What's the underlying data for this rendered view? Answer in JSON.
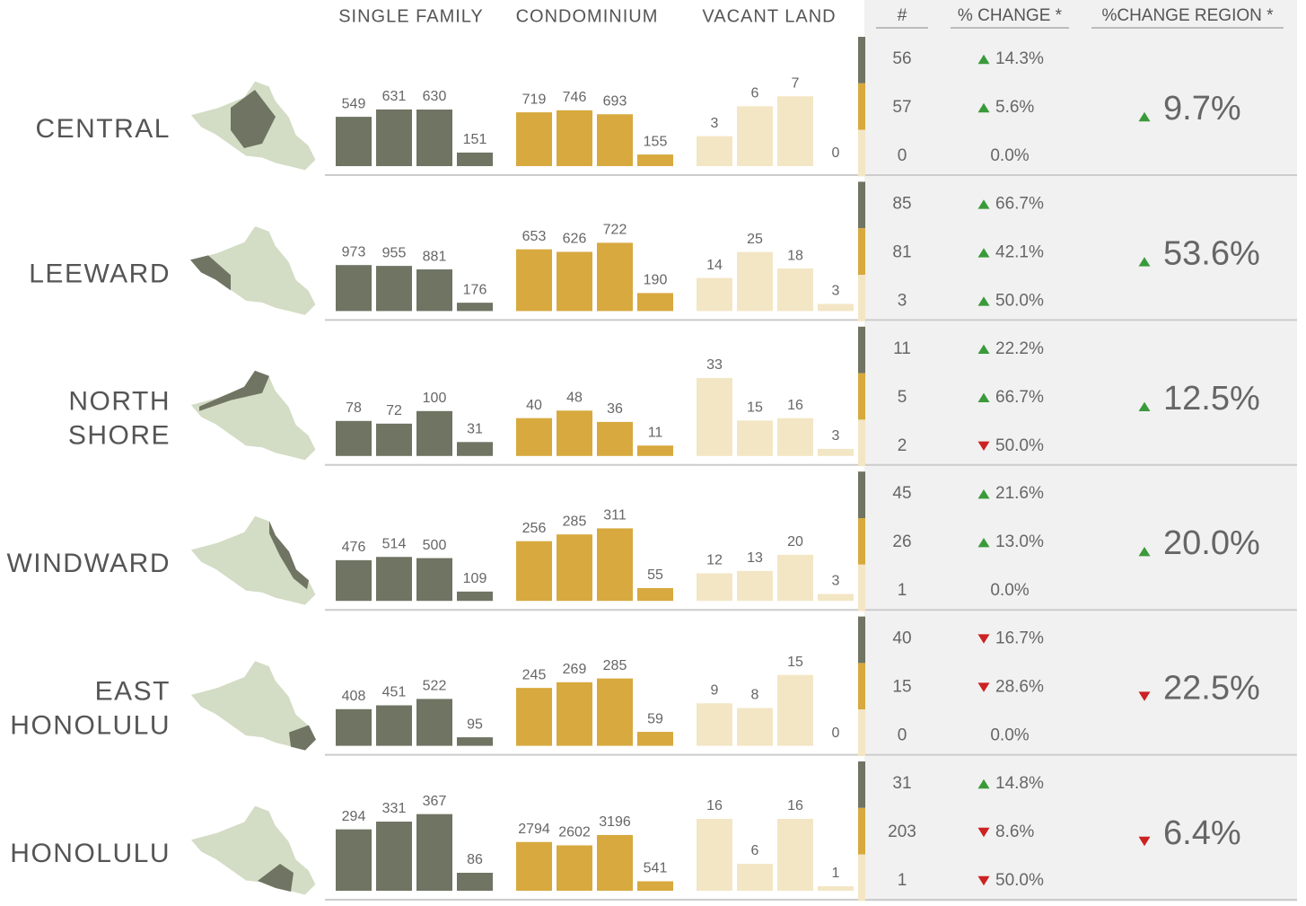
{
  "groups": [
    {
      "name": "SINGLE FAMILY",
      "color": "#6f7463"
    },
    {
      "name": "CONDOMINIUM",
      "color": "#d7a93e"
    },
    {
      "name": "VACANT LAND",
      "color": "#f3e6c4"
    }
  ],
  "stats_headers": [
    "#",
    "% CHANGE *",
    "%CHANGE REGION *"
  ],
  "up_color": "#3a9a3a",
  "down_color": "#cc2222",
  "regions": [
    {
      "name": [
        "CENTRAL"
      ],
      "charts": [
        {
          "values": [
            549,
            631,
            630,
            151
          ],
          "ylim": [
            0,
            1000
          ]
        },
        {
          "values": [
            719,
            746,
            693,
            155
          ],
          "ylim": [
            0,
            1200
          ]
        },
        {
          "values": [
            3,
            6,
            7,
            0
          ],
          "ylim": [
            0,
            9
          ]
        }
      ],
      "counts": [
        56,
        57,
        0
      ],
      "changes": [
        {
          "value": 14.3,
          "label": "14.3%"
        },
        {
          "value": 5.6,
          "label": "5.6%"
        },
        {
          "value": 0,
          "label": "0.0%"
        }
      ],
      "region_change": {
        "value": 9.7,
        "label": "9.7%"
      }
    },
    {
      "name": [
        "LEEWARD"
      ],
      "charts": [
        {
          "values": [
            973,
            955,
            881,
            176
          ],
          "ylim": [
            0,
            1900
          ]
        },
        {
          "values": [
            653,
            626,
            722,
            190
          ],
          "ylim": [
            0,
            950
          ]
        },
        {
          "values": [
            14,
            25,
            18,
            3
          ],
          "ylim": [
            0,
            38
          ]
        }
      ],
      "counts": [
        85,
        81,
        3
      ],
      "changes": [
        {
          "value": 66.7,
          "label": "66.7%"
        },
        {
          "value": 42.1,
          "label": "42.1%"
        },
        {
          "value": 50.0,
          "label": "50.0%"
        }
      ],
      "region_change": {
        "value": 53.6,
        "label": "53.6%"
      }
    },
    {
      "name": [
        "NORTH",
        "SHORE"
      ],
      "charts": [
        {
          "values": [
            78,
            72,
            100,
            31
          ],
          "ylim": [
            0,
            200
          ]
        },
        {
          "values": [
            40,
            48,
            36,
            11
          ],
          "ylim": [
            0,
            95
          ]
        },
        {
          "values": [
            33,
            15,
            16,
            3
          ],
          "ylim": [
            0,
            38
          ]
        }
      ],
      "counts": [
        11,
        5,
        2
      ],
      "changes": [
        {
          "value": 22.2,
          "label": "22.2%"
        },
        {
          "value": 66.7,
          "label": "66.7%"
        },
        {
          "value": -50.0,
          "label": "50.0%"
        }
      ],
      "region_change": {
        "value": 12.5,
        "label": "12.5%"
      }
    },
    {
      "name": [
        "WINDWARD"
      ],
      "charts": [
        {
          "values": [
            476,
            514,
            500,
            109
          ],
          "ylim": [
            0,
            1050
          ]
        },
        {
          "values": [
            256,
            285,
            311,
            55
          ],
          "ylim": [
            0,
            385
          ]
        },
        {
          "values": [
            12,
            13,
            20,
            3
          ],
          "ylim": [
            0,
            39
          ]
        }
      ],
      "counts": [
        45,
        26,
        1
      ],
      "changes": [
        {
          "value": 21.6,
          "label": "21.6%"
        },
        {
          "value": 13.0,
          "label": "13.0%"
        },
        {
          "value": 0,
          "label": "0.0%"
        }
      ],
      "region_change": {
        "value": 20.0,
        "label": "20.0%"
      }
    },
    {
      "name": [
        "EAST",
        "HONOLULU"
      ],
      "charts": [
        {
          "values": [
            408,
            451,
            522,
            95
          ],
          "ylim": [
            0,
            1000
          ]
        },
        {
          "values": [
            245,
            269,
            285,
            59
          ],
          "ylim": [
            0,
            380
          ]
        },
        {
          "values": [
            9,
            8,
            15,
            0
          ],
          "ylim": [
            0,
            19
          ]
        }
      ],
      "counts": [
        40,
        15,
        0
      ],
      "changes": [
        {
          "value": -16.7,
          "label": "16.7%"
        },
        {
          "value": -28.6,
          "label": "28.6%"
        },
        {
          "value": 0,
          "label": "0.0%"
        }
      ],
      "region_change": {
        "value": -22.5,
        "label": "22.5%"
      }
    },
    {
      "name": [
        "HONOLULU"
      ],
      "charts": [
        {
          "values": [
            294,
            331,
            367,
            86
          ],
          "ylim": [
            0,
            430
          ]
        },
        {
          "values": [
            2794,
            2602,
            3196,
            541
          ],
          "ylim": [
            0,
            5150
          ]
        },
        {
          "values": [
            16,
            6,
            16,
            1
          ],
          "ylim": [
            0,
            20
          ]
        }
      ],
      "counts": [
        31,
        203,
        1
      ],
      "changes": [
        {
          "value": 14.8,
          "label": "14.8%"
        },
        {
          "value": -8.6,
          "label": "8.6%"
        },
        {
          "value": -50.0,
          "label": "50.0%"
        }
      ],
      "region_change": {
        "value": -6.4,
        "label": "6.4%"
      }
    }
  ]
}
